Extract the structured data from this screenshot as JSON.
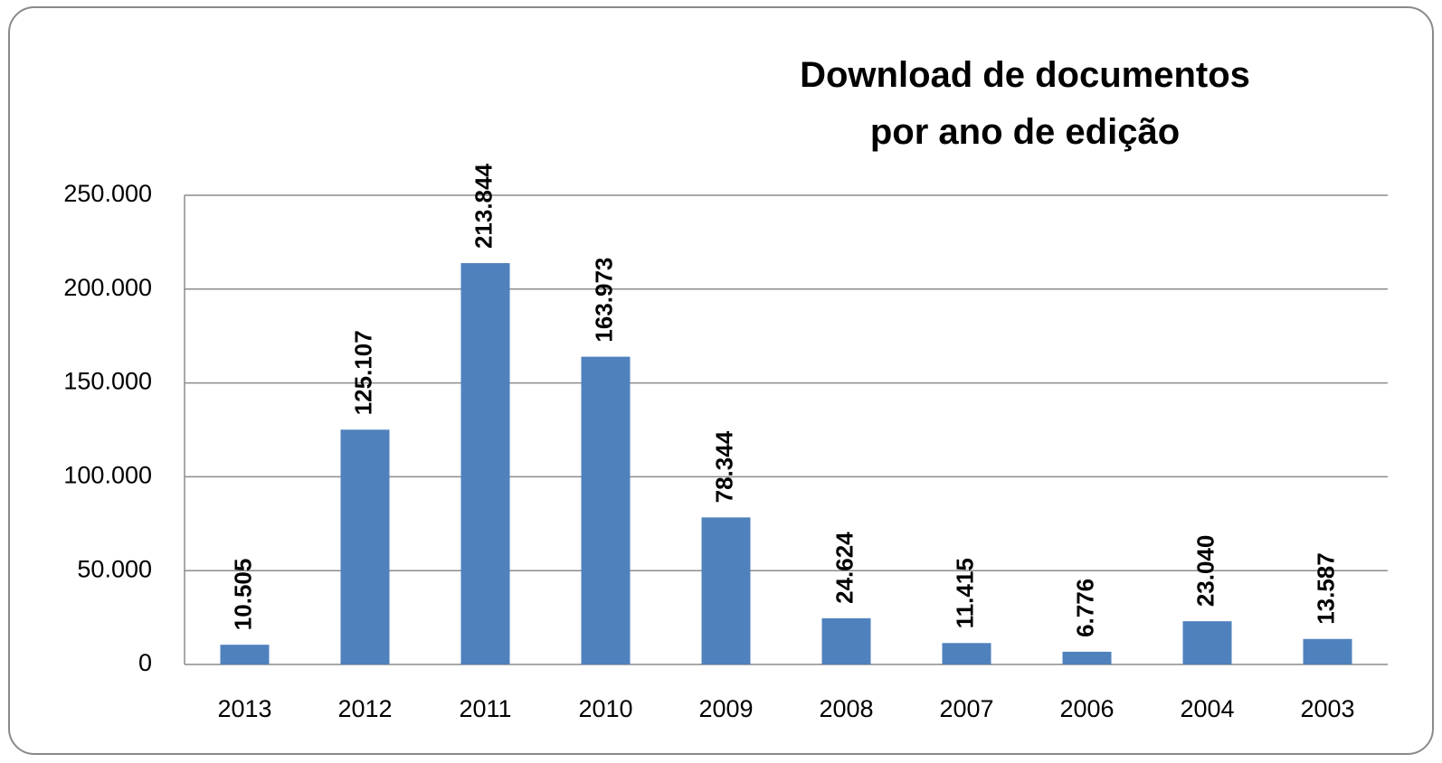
{
  "chart_data": {
    "type": "bar",
    "title": "Download de documentos\npor ano de edição",
    "categories": [
      "2013",
      "2012",
      "2011",
      "2010",
      "2009",
      "2008",
      "2007",
      "2006",
      "2004",
      "2003"
    ],
    "values": [
      10505,
      125107,
      213844,
      163973,
      78344,
      24624,
      11415,
      6776,
      23040,
      13587
    ],
    "value_labels": [
      "10.505",
      "125.107",
      "213.844",
      "163.973",
      "78.344",
      "24.624",
      "11.415",
      "6.776",
      "23.040",
      "13.587"
    ],
    "color": "#4f81bd",
    "ylim": [
      0,
      250000
    ],
    "yticks": [
      0,
      {
        "value": 50000,
        "label": "50.000"
      },
      {
        "value": 100000,
        "label": "100.000"
      },
      {
        "value": 150000,
        "label": "150.000"
      },
      {
        "value": 200000,
        "label": "200.000"
      },
      {
        "value": 250000,
        "label": "250.000"
      }
    ],
    "grid": true
  }
}
